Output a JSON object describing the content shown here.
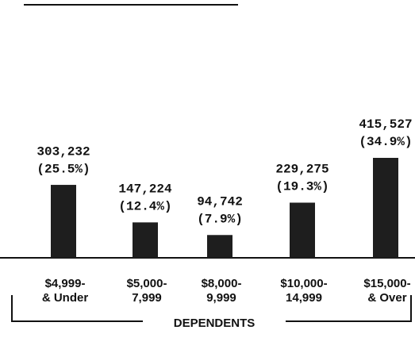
{
  "chart_data": {
    "type": "bar",
    "title": "DEPENDENTS",
    "categories": [
      [
        "$4,999-",
        "& Under"
      ],
      [
        "$5,000-",
        "7,999"
      ],
      [
        "$8,000-",
        "9,999"
      ],
      [
        "$10,000-",
        "14,999"
      ],
      [
        "$15,000-",
        "& Over"
      ]
    ],
    "values": [
      303232,
      147224,
      94742,
      229275,
      415527
    ],
    "value_labels": [
      "303,232",
      "147,224",
      "94,742",
      "229,275",
      "415,527"
    ],
    "percent_labels": [
      "(25.5%)",
      "(12.4%)",
      "(7.9%)",
      "(19.3%)",
      "(34.9%)"
    ],
    "color": "#1e1e1e"
  }
}
